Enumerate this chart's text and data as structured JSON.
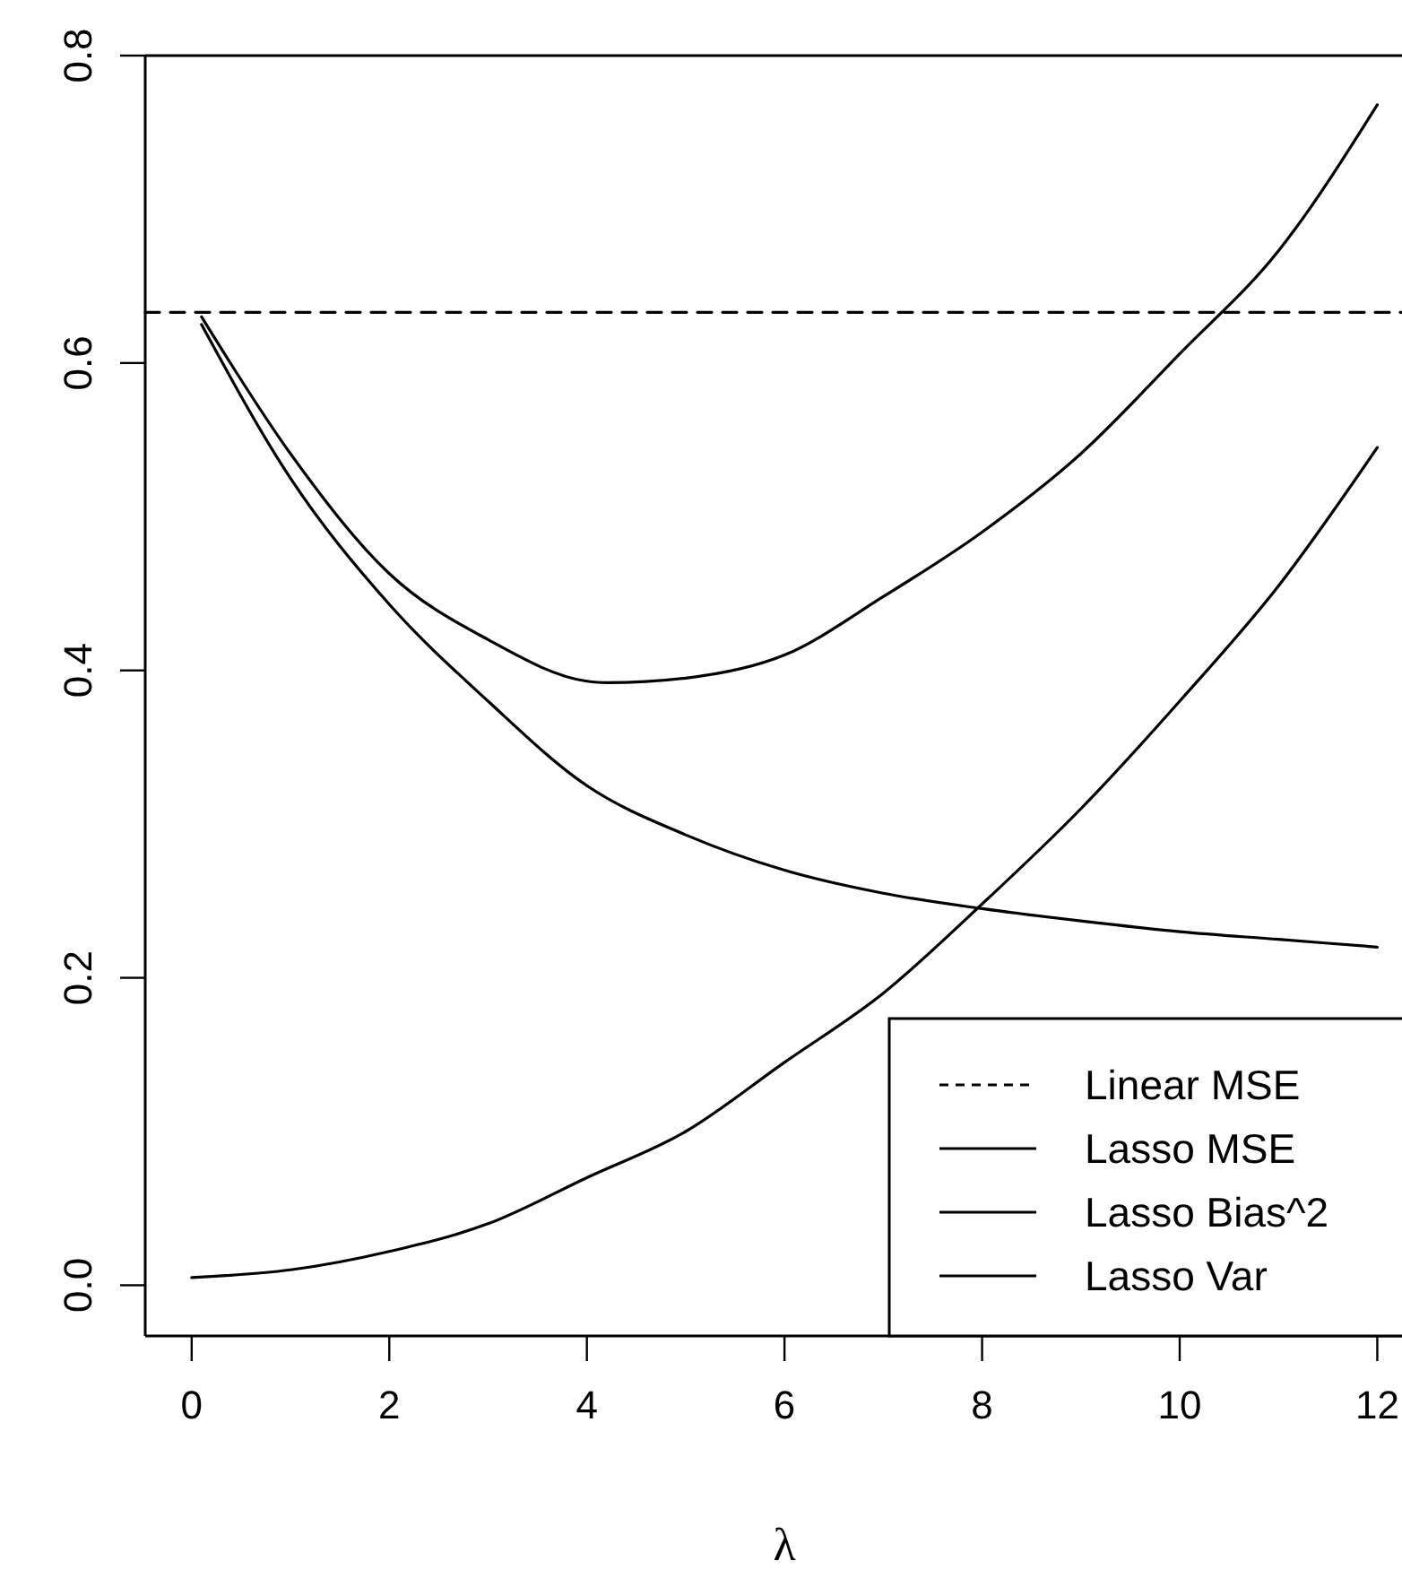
{
  "chart_data": {
    "type": "line",
    "xlabel": "λ",
    "xlim": [
      -0.47,
      12.25
    ],
    "ylim": [
      -0.033,
      0.8
    ],
    "xticks": [
      0,
      2,
      4,
      6,
      8,
      10,
      12
    ],
    "yticks": [
      {
        "value": 0,
        "label": "0.0"
      },
      0.2,
      0.4,
      0.6,
      0.8
    ],
    "line_style": "solid",
    "legend": "bottom right",
    "grid": false,
    "series": [
      {
        "name": "Linear MSE",
        "color": "#000000",
        "line_style": "dashed",
        "x": [
          -0.47,
          12.25
        ],
        "values": [
          0.633,
          0.633
        ]
      },
      {
        "name": "Lasso MSE",
        "color": "#000000",
        "x": [
          0.1,
          1,
          2,
          3,
          4,
          4.2,
          5,
          6,
          7,
          8,
          9,
          10,
          11,
          12
        ],
        "values": [
          0.63,
          0.541,
          0.463,
          0.42,
          0.393,
          0.392,
          0.395,
          0.41,
          0.448,
          0.49,
          0.541,
          0.606,
          0.673,
          0.768
        ]
      },
      {
        "name": "Lasso Bias^2",
        "color": "#000000",
        "x": [
          0,
          1,
          2,
          3,
          4,
          5,
          6,
          7,
          8,
          9,
          10,
          11,
          12
        ],
        "values": [
          0.005,
          0.01,
          0.022,
          0.04,
          0.07,
          0.1,
          0.145,
          0.19,
          0.248,
          0.31,
          0.38,
          0.455,
          0.545
        ]
      },
      {
        "name": "Lasso Var",
        "color": "#000000",
        "x": [
          0.1,
          1,
          2,
          3,
          4,
          5,
          6,
          7,
          8,
          9,
          10,
          11,
          12
        ],
        "values": [
          0.625,
          0.525,
          0.443,
          0.38,
          0.325,
          0.293,
          0.27,
          0.255,
          0.245,
          0.237,
          0.23,
          0.225,
          0.22
        ]
      }
    ]
  }
}
